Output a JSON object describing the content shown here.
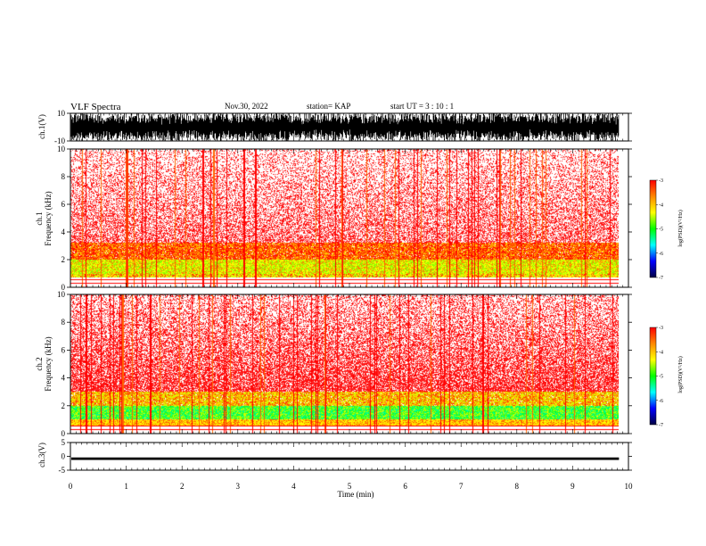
{
  "header": {
    "title": "VLF Spectra",
    "date": "Nov.30, 2022",
    "station": "station= KAP",
    "start": "start  UT  =   3  : 10 : 1"
  },
  "chart_data": [
    {
      "type": "line",
      "panel": "ch1-waveform",
      "ylabel": "ch.1(V)",
      "ylim": [
        -10,
        10
      ],
      "y_ticks": [
        "10",
        "-10"
      ],
      "xlim": [
        0,
        10
      ],
      "data_end_min": 9.83,
      "description_values": {
        "amplitude_min": -10,
        "amplitude_max": 10
      }
    },
    {
      "type": "heatmap",
      "panel": "ch1-spectrogram",
      "ylabel": "ch.1\nFrequency  (kHz)",
      "ylabel_lines": [
        "ch.1",
        "Frequency  (kHz)"
      ],
      "ylim": [
        0,
        10
      ],
      "y_ticks": [
        "0",
        "2",
        "4",
        "6",
        "8",
        "10"
      ],
      "xlim": [
        0,
        10
      ],
      "data_end_min": 9.83,
      "bands": [
        {
          "f_low": 0.7,
          "f_high": 1.0,
          "level": "yellow-green"
        },
        {
          "f_low": 1.0,
          "f_high": 2.0,
          "level": "green-yellow"
        },
        {
          "f_low": 2.0,
          "f_high": 3.2,
          "level": "orange-red"
        },
        {
          "f_low": 3.2,
          "f_high": 10,
          "level": "red-sparse"
        }
      ],
      "colorbar": {
        "label": "log(PSD)(V²/Hz)",
        "range": [
          -7,
          -3
        ],
        "ticks": [
          "-3",
          "-4",
          "-5",
          "-6",
          "-7"
        ]
      }
    },
    {
      "type": "heatmap",
      "panel": "ch2-spectrogram",
      "ylabel_lines": [
        "ch.2",
        "Frequency  (kHz)"
      ],
      "ylim": [
        0,
        10
      ],
      "y_ticks": [
        "0",
        "2",
        "4",
        "6",
        "8",
        "10"
      ],
      "xlim": [
        0,
        10
      ],
      "data_end_min": 9.83,
      "bands": [
        {
          "f_low": 0.5,
          "f_high": 1.0,
          "level": "yellow"
        },
        {
          "f_low": 1.0,
          "f_high": 2.0,
          "level": "green"
        },
        {
          "f_low": 2.0,
          "f_high": 3.0,
          "level": "orange-yellow"
        },
        {
          "f_low": 3.0,
          "f_high": 10,
          "level": "red-dense"
        }
      ],
      "colorbar": {
        "label": "log(PSD)(V²/Hz)",
        "range": [
          -7,
          -3
        ],
        "ticks": [
          "-3",
          "-4",
          "-5",
          "-6",
          "-7"
        ]
      }
    },
    {
      "type": "line",
      "panel": "ch3-waveform",
      "ylabel": "ch.3(V)",
      "ylim": [
        -5,
        5
      ],
      "y_ticks": [
        "5",
        "0",
        "-5"
      ],
      "xlim": [
        0,
        10
      ],
      "data_end_min": 9.83,
      "band": {
        "y_low": -1.3,
        "y_high": -0.4
      },
      "x_ticks": [
        "0",
        "1",
        "2",
        "3",
        "4",
        "5",
        "6",
        "7",
        "8",
        "9",
        "10"
      ],
      "xlabel": "Time  (min)"
    }
  ],
  "colors": {
    "waveform": "#000000",
    "spectrum_high": "#ff0000",
    "spectrum_mid": "#ffff00",
    "spectrum_low": "#00dd00",
    "colorbar_stops": [
      "#ff0000",
      "#ff8800",
      "#ffff00",
      "#00ff00",
      "#00ffff",
      "#0000ff",
      "#000044"
    ]
  }
}
